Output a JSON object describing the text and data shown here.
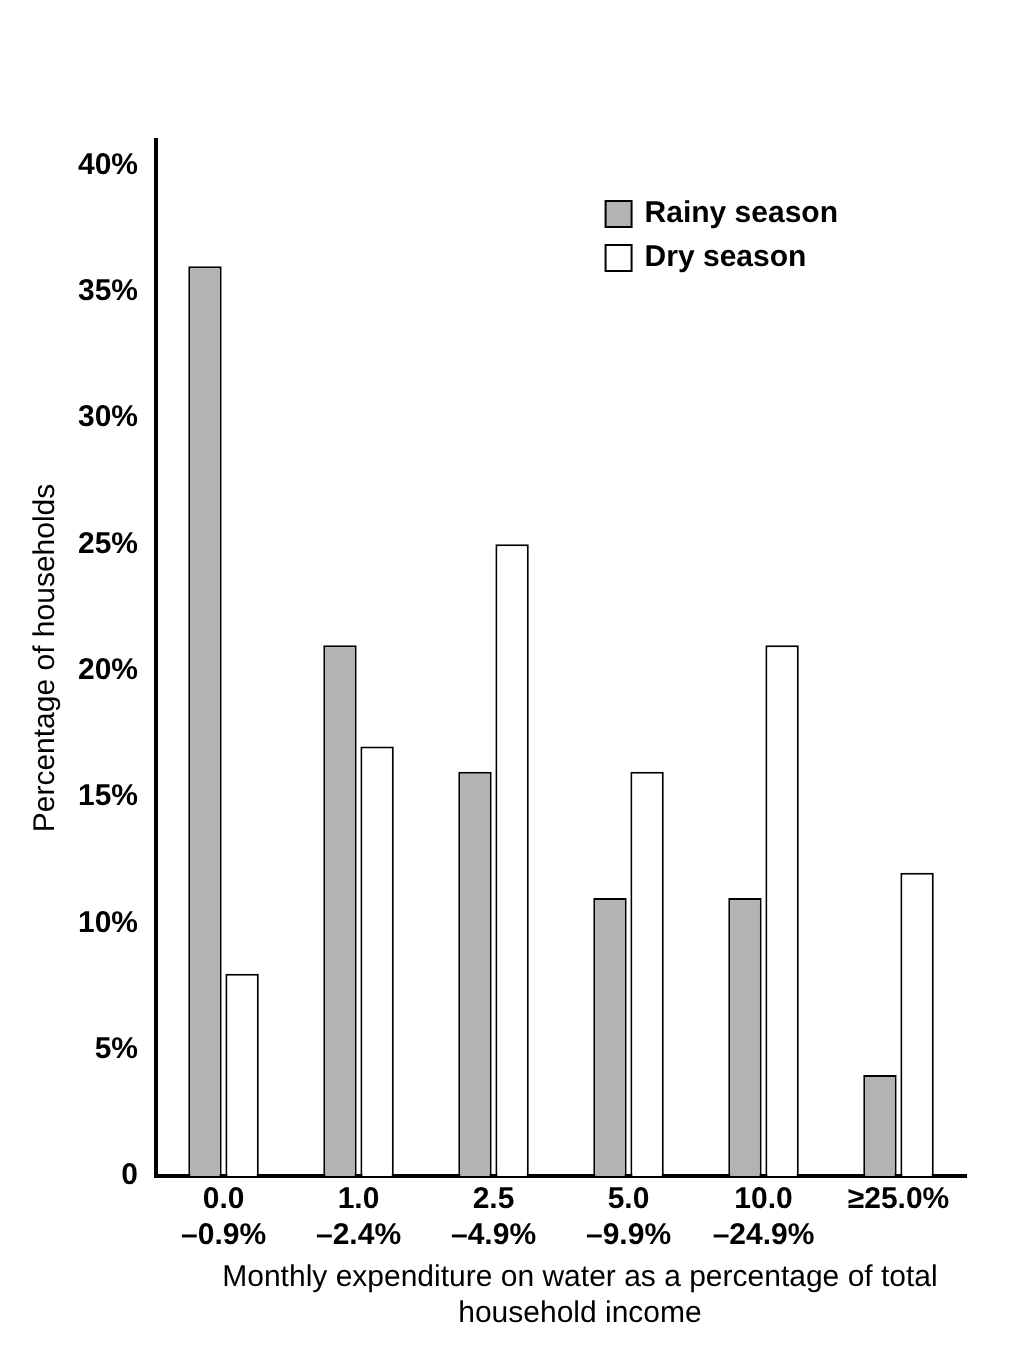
{
  "chart_data": {
    "type": "bar",
    "xlabel": "Monthly expenditure on water as a percentage of total household income",
    "ylabel": "Percentage of households",
    "categories": [
      "0.0 –0.9%",
      "1.0 –2.4%",
      "2.5 –4.9%",
      "5.0 –9.9%",
      "10.0 –24.9%",
      "≥25.0%"
    ],
    "series": [
      {
        "name": "Rainy season",
        "color": "#b3b3b3",
        "values": [
          36,
          21,
          16,
          11,
          11,
          4
        ]
      },
      {
        "name": "Dry season",
        "color": "#ffffff",
        "values": [
          8,
          17,
          25,
          16,
          21,
          12
        ]
      }
    ],
    "ylim": [
      0,
      41
    ],
    "yticks": [
      {
        "value": 0,
        "label": "0"
      },
      {
        "value": 5,
        "label": "5%"
      },
      {
        "value": 10,
        "label": "10%"
      },
      {
        "value": 15,
        "label": "15%"
      },
      {
        "value": 20,
        "label": "20%"
      },
      {
        "value": 25,
        "label": "25%"
      },
      {
        "value": 30,
        "label": "30%"
      },
      {
        "value": 35,
        "label": "35%"
      },
      {
        "value": 40,
        "label": "40%"
      }
    ],
    "grid": false,
    "legend": "top right"
  }
}
